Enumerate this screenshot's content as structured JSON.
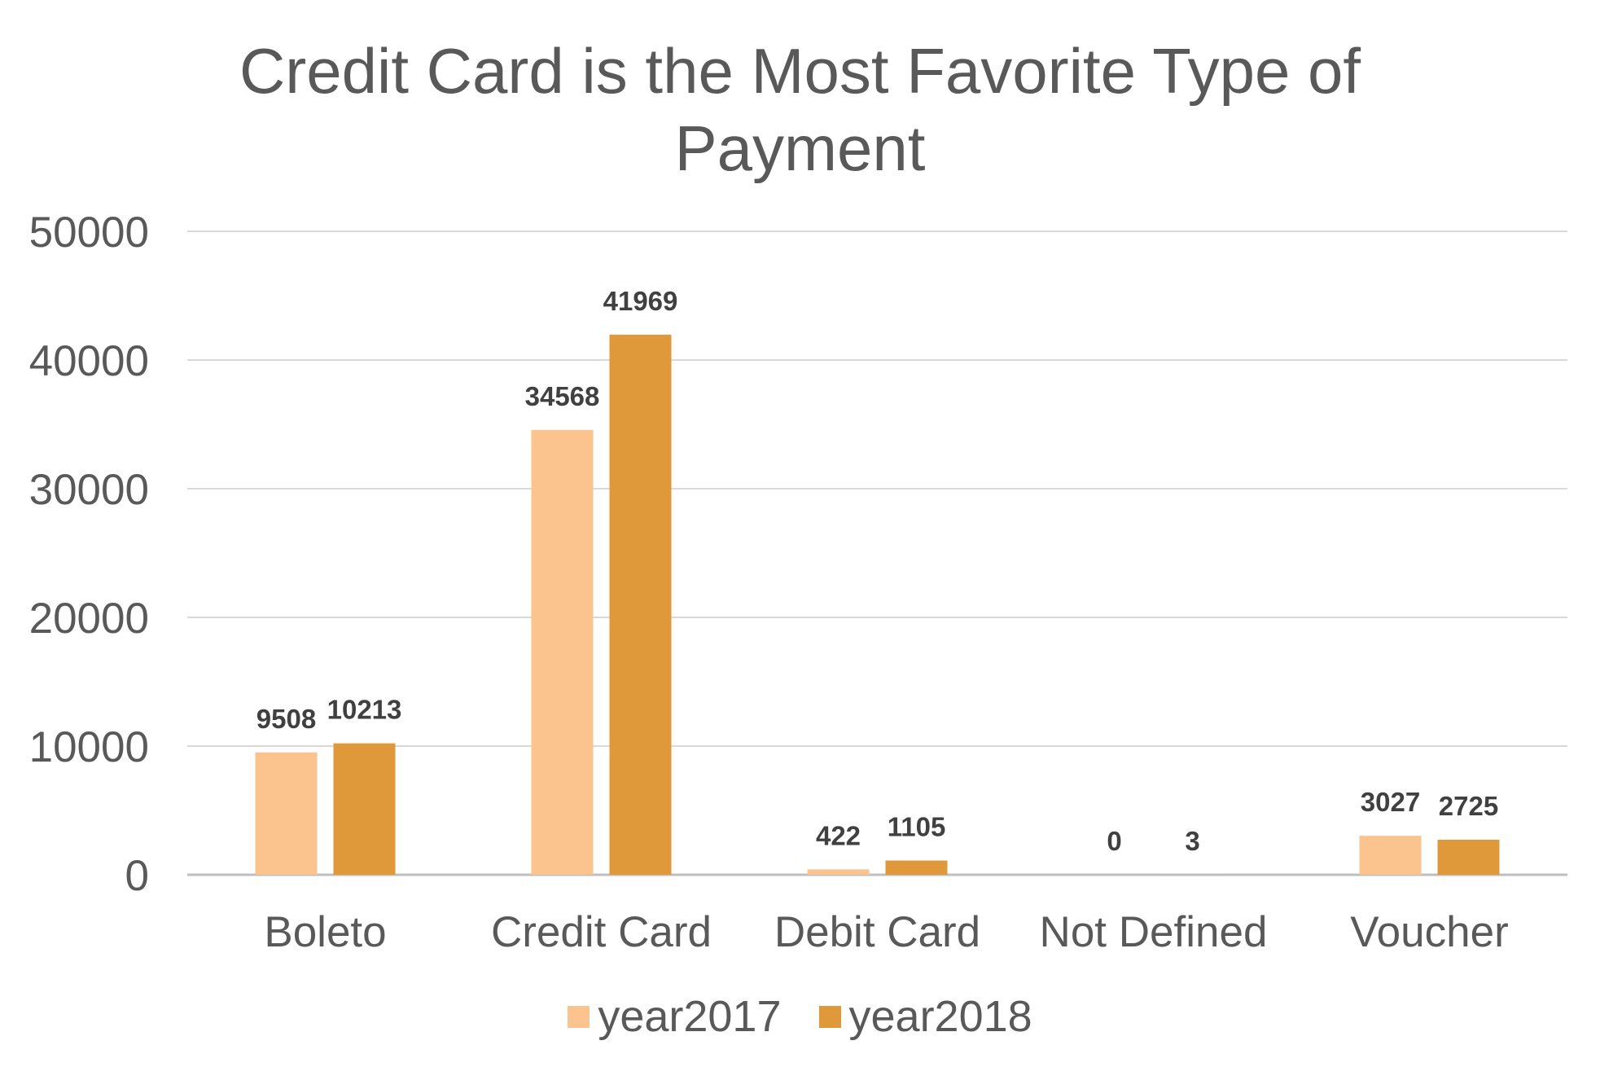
{
  "chart_data": {
    "type": "bar",
    "title_lines": [
      "Credit Card is the Most Favorite Type of",
      "Payment"
    ],
    "categories": [
      "Boleto",
      "Credit Card",
      "Debit Card",
      "Not Defined",
      "Voucher"
    ],
    "series": [
      {
        "name": "year2017",
        "values": [
          9508,
          34568,
          422,
          0,
          3027
        ],
        "color": "#FBC38E"
      },
      {
        "name": "year2018",
        "values": [
          10213,
          41969,
          1105,
          3,
          2725
        ],
        "color": "#E0993A"
      }
    ],
    "ylim": [
      0,
      50000
    ],
    "yticks": [
      0,
      10000,
      20000,
      30000,
      40000,
      50000
    ],
    "grid": true,
    "data_labels": true,
    "legend_position": "bottom"
  }
}
